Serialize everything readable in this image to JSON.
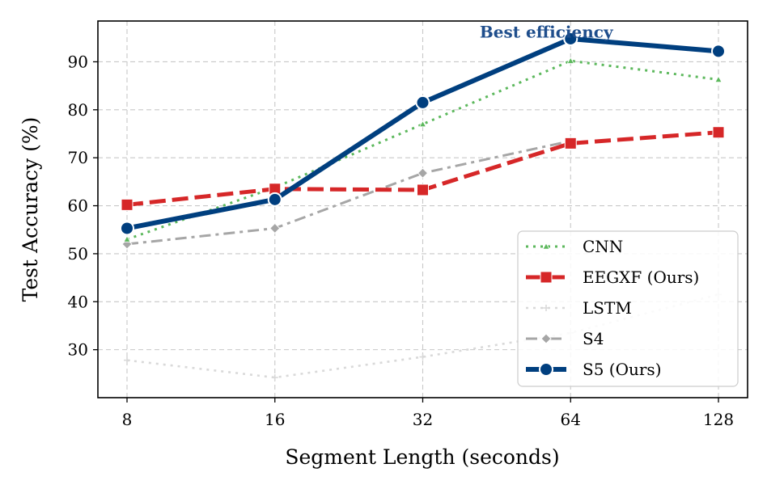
{
  "chart_data": {
    "type": "line",
    "title": "",
    "xlabel": "Segment Length (seconds)",
    "ylabel": "Test Accuracy (%)",
    "categories": [
      "8",
      "16",
      "32",
      "64",
      "128"
    ],
    "x_scale": "log2",
    "ylim": [
      20,
      98.5
    ],
    "yticks": [
      30,
      40,
      50,
      60,
      70,
      80,
      90
    ],
    "grid": true,
    "legend_position": "bottom-right",
    "series": [
      {
        "name": "CNN",
        "values": [
          53.0,
          63.8,
          77.0,
          90.2,
          86.3
        ],
        "color": "#5cb85c",
        "marker": "triangle",
        "dash": "dotted"
      },
      {
        "name": "EEGXF (Ours)",
        "values": [
          60.2,
          63.5,
          63.3,
          73.0,
          75.3
        ],
        "color": "#d62728",
        "marker": "square",
        "dash": "dashed"
      },
      {
        "name": "LSTM",
        "values": [
          27.8,
          24.2,
          28.5,
          33.5,
          41.5
        ],
        "color": "#d9d9d9",
        "marker": "plus",
        "dash": "dotted"
      },
      {
        "name": "S4",
        "values": [
          52.0,
          55.3,
          66.8,
          73.5,
          null
        ],
        "color": "#a6a6a6",
        "marker": "diamond",
        "dash": "dashdot"
      },
      {
        "name": "S5 (Ours)",
        "values": [
          55.3,
          61.3,
          81.5,
          94.8,
          92.2
        ],
        "color": "#003f7f",
        "marker": "circle",
        "dash": "solid"
      }
    ],
    "annotations": [
      {
        "text": "Best efficiency",
        "x": "64",
        "y": 96.2,
        "color": "#1f4e8c"
      }
    ]
  }
}
